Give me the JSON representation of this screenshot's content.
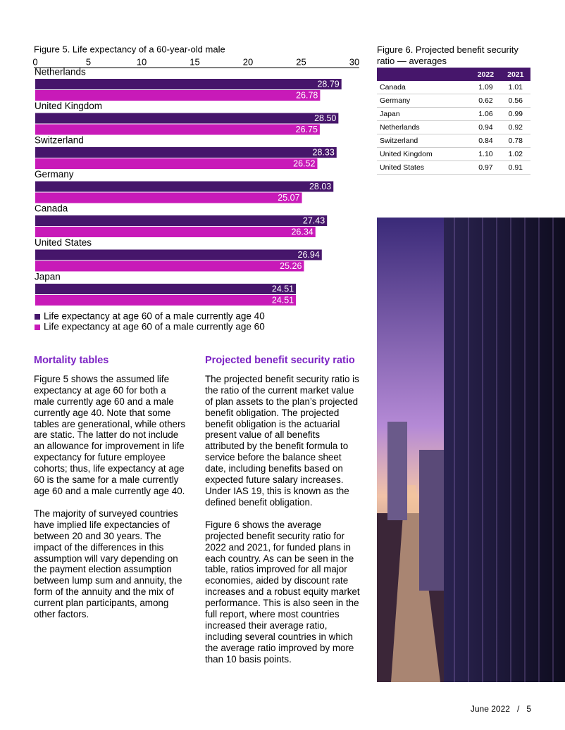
{
  "chart_data": {
    "type": "bar",
    "orientation": "horizontal",
    "title": "Figure 5. Life expectancy of a 60-year-old male",
    "categories": [
      "Netherlands",
      "United Kingdom",
      "Switzerland",
      "Germany",
      "Canada",
      "United States",
      "Japan"
    ],
    "series": [
      {
        "name": "Life expectancy at age 60 of a male currently age 40",
        "color": "#46166b",
        "values": [
          28.79,
          28.5,
          28.33,
          28.03,
          27.43,
          26.94,
          24.51
        ],
        "value_labels": [
          "28.79",
          "28.50",
          "28.33",
          "28.03",
          "27.43",
          "26.94",
          "24.51"
        ]
      },
      {
        "name": "Life expectancy at age 60 of a male currently age 60",
        "color": "#c81ab8",
        "values": [
          26.78,
          26.75,
          26.52,
          25.07,
          26.34,
          25.26,
          24.51
        ],
        "value_labels": [
          "26.78",
          "26.75",
          "26.52",
          "25.07",
          "26.34",
          "25.26",
          "24.51"
        ]
      }
    ],
    "xlim": [
      0,
      30
    ],
    "xticks": [
      0,
      5,
      10,
      15,
      20,
      25,
      30
    ]
  },
  "figure6": {
    "title": "Figure 6. Projected benefit security ratio — averages",
    "columns": [
      "2022",
      "2021"
    ],
    "rows": [
      [
        "Canada",
        "1.09",
        "1.01"
      ],
      [
        "Germany",
        "0.62",
        "0.56"
      ],
      [
        "Japan",
        "1.06",
        "0.99"
      ],
      [
        "Netherlands",
        "0.94",
        "0.92"
      ],
      [
        "Switzerland",
        "0.84",
        "0.78"
      ],
      [
        "United Kingdom",
        "1.10",
        "1.02"
      ],
      [
        "United States",
        "0.97",
        "0.91"
      ]
    ]
  },
  "sections": [
    {
      "heading": "Mortality tables",
      "paragraphs": [
        "Figure 5 shows the assumed life expectancy at age 60 for both a male currently age 60 and a male currently age 40. Note that some tables are generational, while others are static. The latter do not include an allowance for improvement in life expectancy for future employee cohorts; thus, life expectancy at age 60 is the same for a male currently age 60 and a male currently age 40.",
        "The majority of surveyed countries have implied life expectancies of between 20 and 30 years. The impact of the differences in this assumption will vary depending on the payment election assumption between lump sum and annuity, the form of the annuity and the mix of current plan participants, among other factors."
      ]
    },
    {
      "heading": "Projected benefit security ratio",
      "paragraphs": [
        "The projected benefit security ratio is the ratio of the current market value of plan assets to the plan’s projected benefit obligation. The projected benefit obligation is the actuarial present value of all benefits attributed by the benefit formula to service before the balance sheet date, including benefits based on expected future salary increases. Under IAS 19, this is known as the defined benefit obligation.",
        "Figure 6 shows the average projected benefit security ratio for 2022 and 2021, for funded plans in each country. As can be seen in the table, ratios improved for all major economies, aided by discount rate increases and a robust equity market performance. This is also seen in the full report, where most countries increased their average ratio, including several countries in which the average ratio improved by more than 10 basis points."
      ]
    }
  ],
  "footer": {
    "date": "June 2022",
    "separator": "/",
    "page": "5"
  }
}
